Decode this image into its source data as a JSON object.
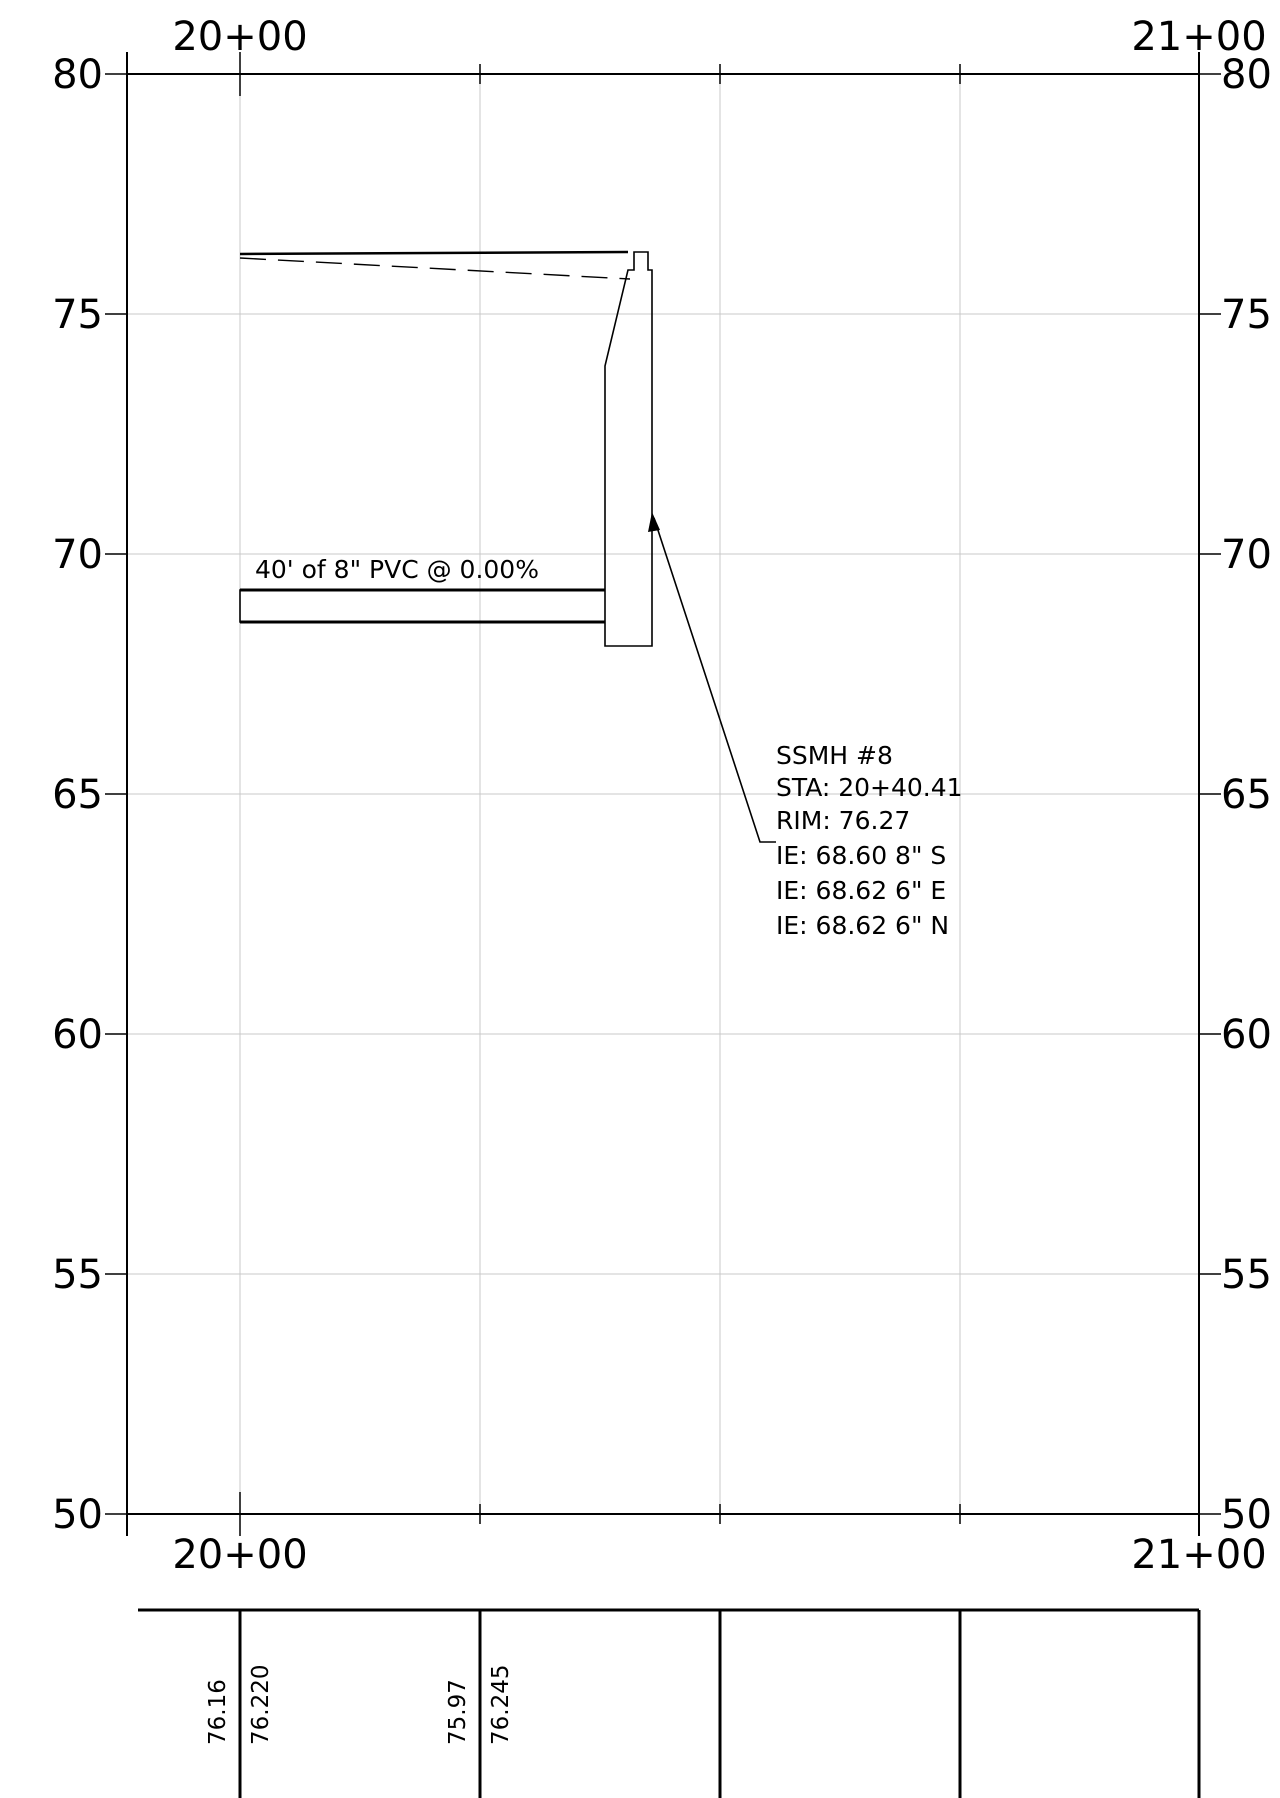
{
  "profile": {
    "elevation_labels": [
      "80",
      "75",
      "70",
      "65",
      "60",
      "55",
      "50"
    ],
    "station_labels": {
      "left": "20+00",
      "right": "21+00"
    },
    "pipe_label": "40' of 8\" PVC @ 0.00%",
    "manhole_callout": [
      "SSMH  #8",
      "STA:  20+40.41",
      "RIM:  76.27",
      "IE:  68.60  8\"  S",
      "IE:  68.62  6\"  E",
      "IE:  68.62  6\"  N"
    ]
  },
  "elevation_table": {
    "columns": [
      {
        "existing": "76.16",
        "proposed": "76.220"
      },
      {
        "existing": "75.97",
        "proposed": "76.245"
      }
    ]
  }
}
